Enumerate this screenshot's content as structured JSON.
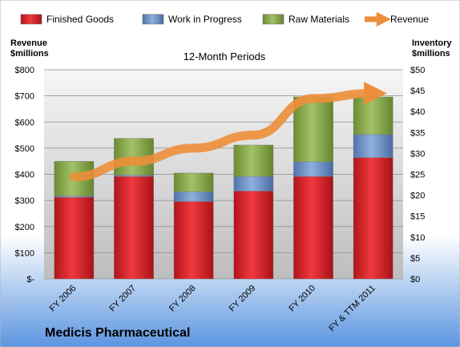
{
  "chart_data": {
    "type": "bar",
    "subtitle": "12-Month Periods",
    "company": "Medicis Pharmaceutical",
    "ylabel_left": [
      "Revenue",
      "$millions"
    ],
    "ylabel_right": [
      "Inventory",
      "$millions"
    ],
    "categories": [
      "FY 2006",
      "FY 2007",
      "FY 2008",
      "FY 2009",
      "FY 2010",
      "FY & TTM 2011"
    ],
    "stacked": true,
    "series": [
      {
        "name": "Finished Goods",
        "axis": "right",
        "color": "#E0262B",
        "values": [
          19.5,
          24.5,
          18.5,
          21,
          24.5,
          29
        ]
      },
      {
        "name": "Work in Progress",
        "axis": "right",
        "color": "#6F93C8",
        "values": [
          0.3,
          0.3,
          2.3,
          3.5,
          3.5,
          5.5
        ]
      },
      {
        "name": "Raw Materials",
        "axis": "right",
        "color": "#8DAE4F",
        "values": [
          8.3,
          8.8,
          4.5,
          7.5,
          15.5,
          9
        ]
      },
      {
        "name": "Revenue",
        "axis": "left",
        "type": "line",
        "color": "#ED8E3A",
        "values": [
          390,
          450,
          500,
          550,
          690,
          710
        ]
      }
    ],
    "y_left": {
      "min": 0,
      "max": 800,
      "step": 100,
      "ticks": [
        "$-",
        "$100",
        "$200",
        "$300",
        "$400",
        "$500",
        "$600",
        "$700",
        "$800"
      ]
    },
    "y_right": {
      "min": 0,
      "max": 50,
      "step": 5,
      "ticks": [
        "$0",
        "$5",
        "$10",
        "$15",
        "$20",
        "$25",
        "$30",
        "$35",
        "$40",
        "$45",
        "$50"
      ]
    },
    "grid": true,
    "legend": "top"
  }
}
